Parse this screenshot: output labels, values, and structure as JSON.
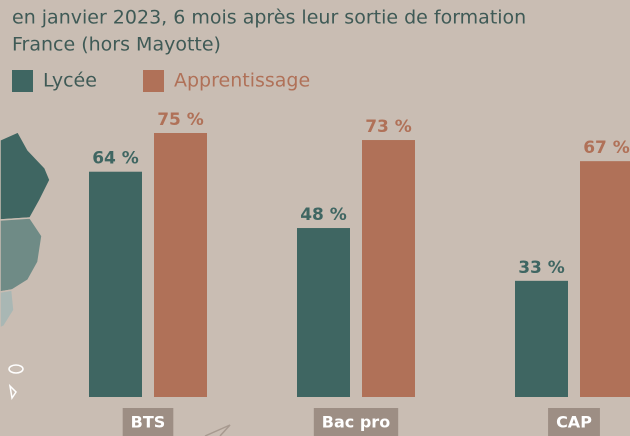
{
  "chart_data": {
    "type": "bar",
    "subtitle": [
      "en janvier 2023, 6 mois après leur sortie de formation",
      "France (hors Mayotte)"
    ],
    "categories": [
      "BTS",
      "Bac pro",
      "CAP"
    ],
    "series": [
      {
        "name": "Lycée",
        "color": "#3f6662",
        "values": [
          64,
          48,
          33
        ],
        "value_labels": [
          "64 %",
          "48 %",
          "33 %"
        ]
      },
      {
        "name": "Apprentissage",
        "color": "#b07158",
        "values": [
          75,
          73,
          67
        ],
        "value_labels": [
          "75 %",
          "73 %",
          "67 %"
        ]
      }
    ]
  }
}
